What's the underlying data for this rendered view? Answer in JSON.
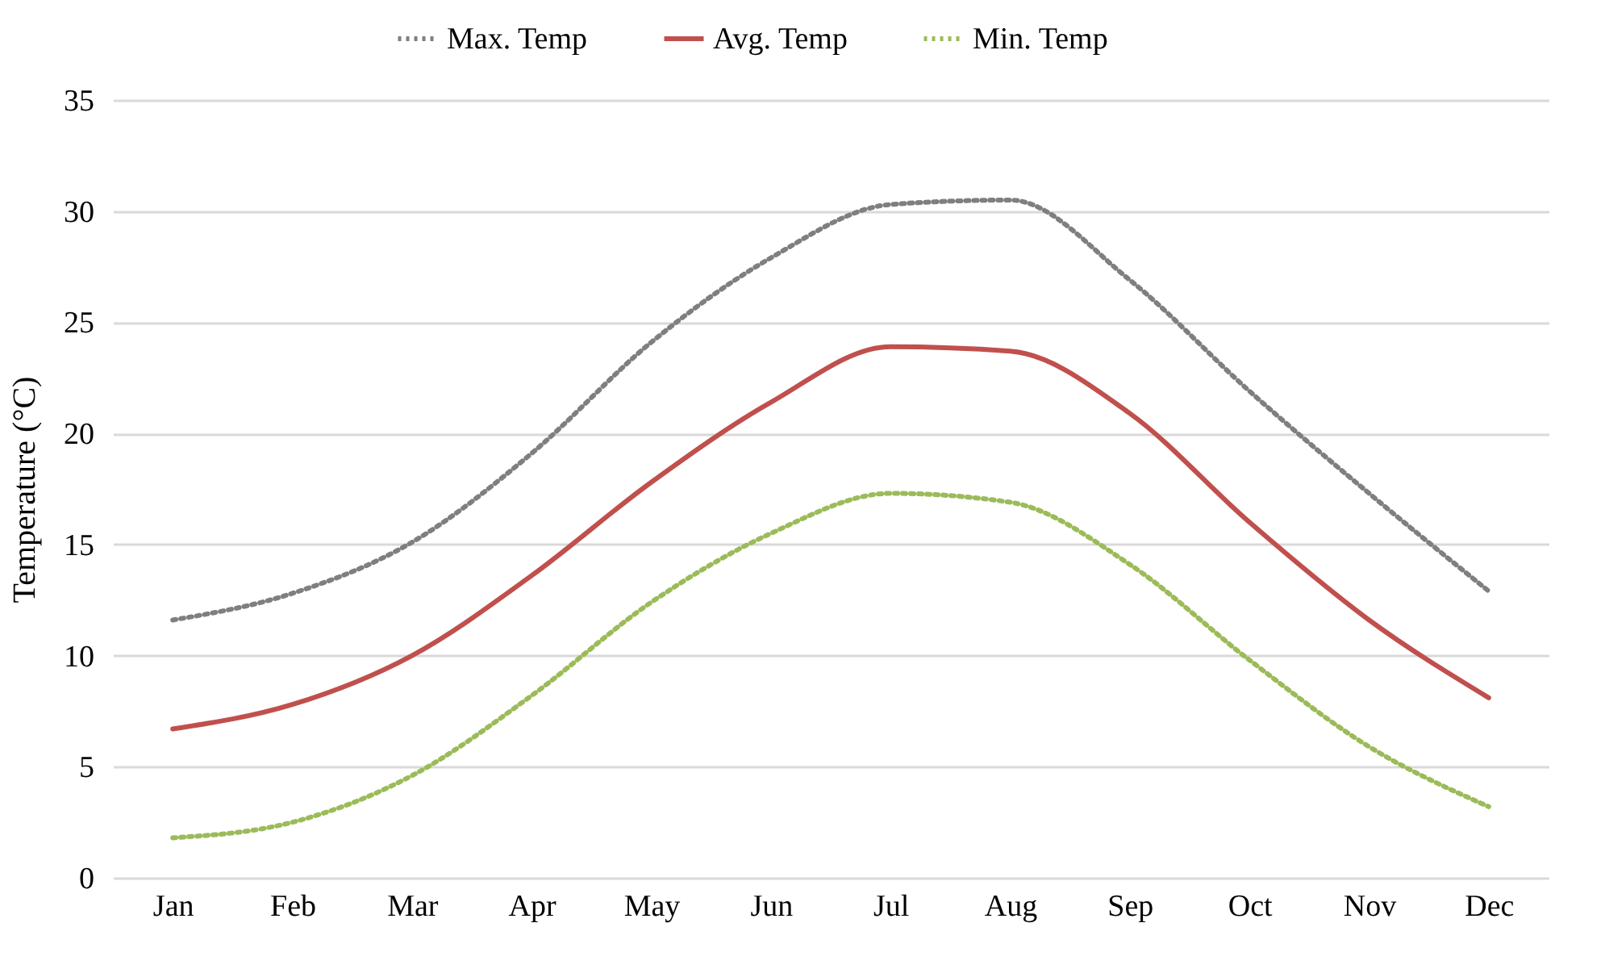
{
  "chart_data": {
    "type": "line",
    "ylabel": "Temperature (°C)",
    "categories": [
      "Jan",
      "Feb",
      "Mar",
      "Apr",
      "May",
      "Jun",
      "Jul",
      "Aug",
      "Sep",
      "Oct",
      "Nov",
      "Dec"
    ],
    "series": [
      {
        "name": "Max. Temp",
        "color": "#7f7f7f",
        "line_style": "dotted",
        "values": [
          11.6,
          12.8,
          15.1,
          19.1,
          24.1,
          27.9,
          30.3,
          30.5,
          26.9,
          21.9,
          17.3,
          12.9
        ]
      },
      {
        "name": "Avg. Temp",
        "color": "#c0504d",
        "line_style": "solid",
        "values": [
          6.7,
          7.8,
          10.0,
          13.6,
          17.8,
          21.4,
          23.9,
          23.7,
          20.9,
          16.0,
          11.6,
          8.1
        ]
      },
      {
        "name": "Min. Temp",
        "color": "#9bbb59",
        "line_style": "dotted",
        "values": [
          1.8,
          2.5,
          4.6,
          8.2,
          12.4,
          15.5,
          17.3,
          16.9,
          14.1,
          9.8,
          5.9,
          3.2
        ]
      }
    ],
    "ylim": [
      0,
      35
    ],
    "yticks": [
      0,
      5,
      10,
      15,
      20,
      25,
      30,
      35
    ],
    "grid": "y",
    "legend": "top",
    "marker": "none"
  }
}
